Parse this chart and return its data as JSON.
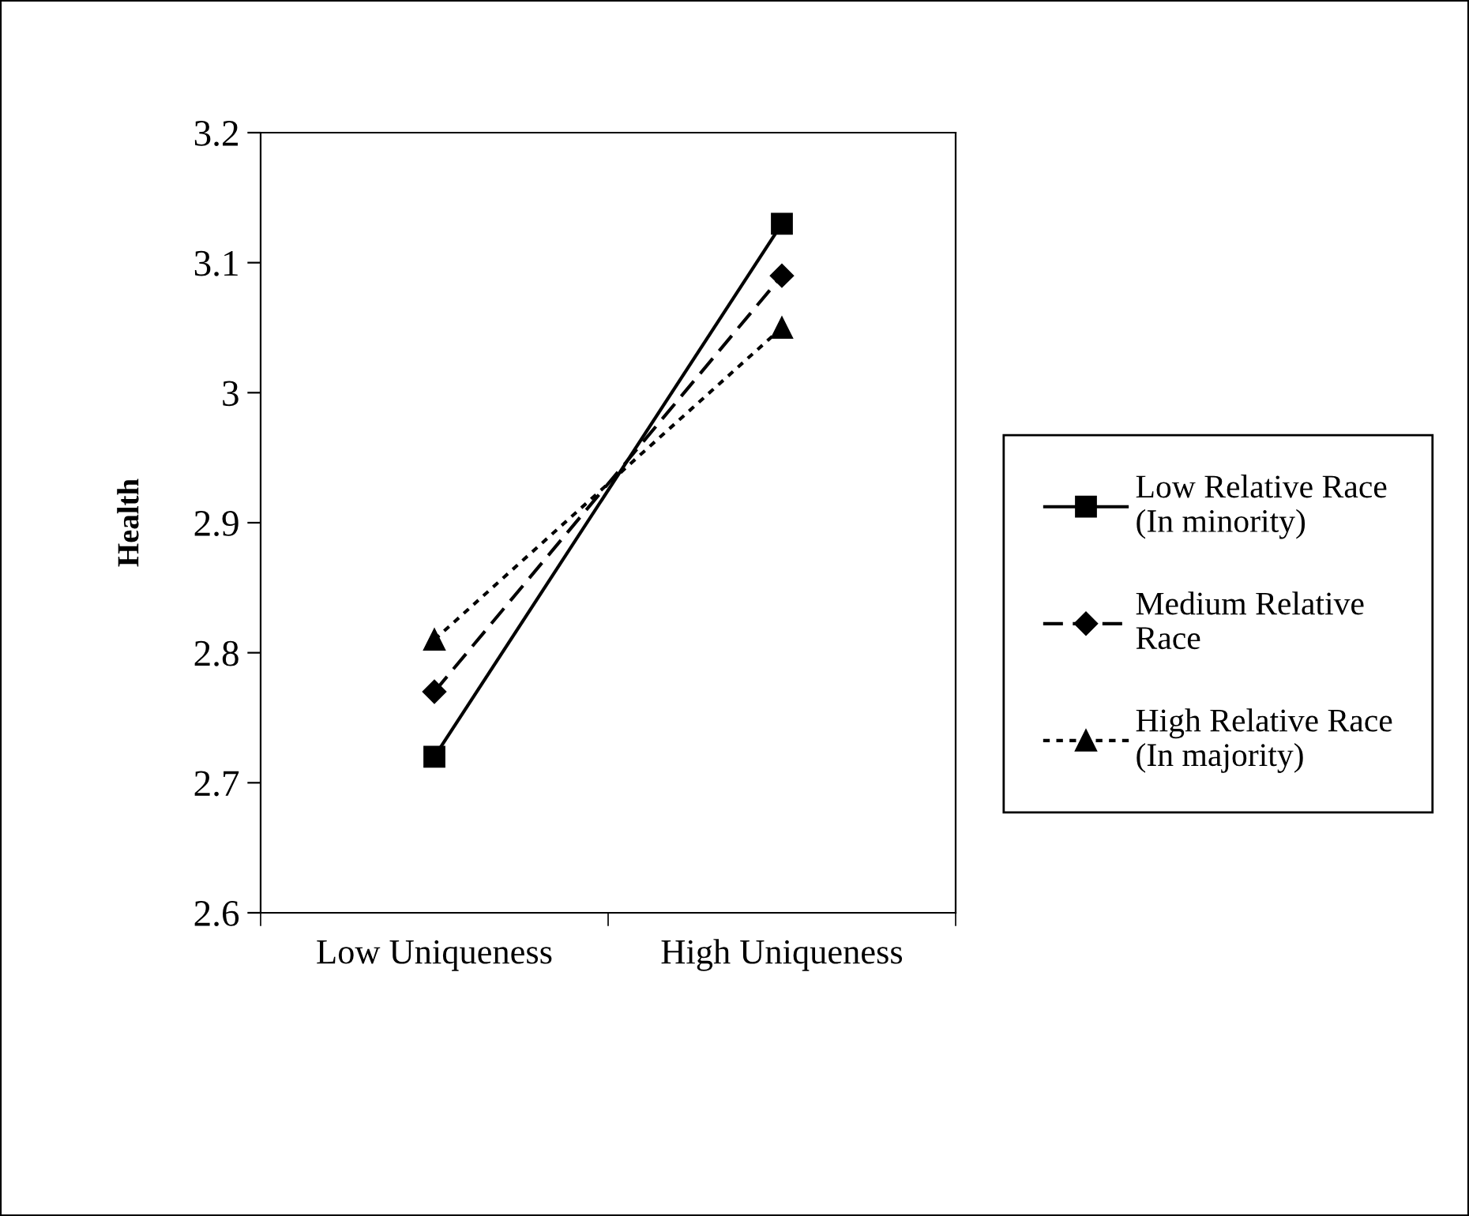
{
  "chart_data": {
    "type": "line",
    "ylabel": "Health",
    "categories": [
      "Low Uniqueness",
      "High Uniqueness"
    ],
    "ylim": [
      2.6,
      3.2
    ],
    "yticks": [
      2.6,
      2.7,
      2.8,
      2.9,
      3,
      3.1,
      3.2
    ],
    "grid": false,
    "legend": "right",
    "series": [
      {
        "name": "Low Relative Race\n(In minority)",
        "color": "#000000",
        "values": [
          2.72,
          3.13
        ],
        "marker": "square",
        "line_style": "solid"
      },
      {
        "name": "Medium Relative\nRace",
        "color": "#000000",
        "values": [
          2.77,
          3.09
        ],
        "marker": "diamond",
        "line_style": "dashed"
      },
      {
        "name": "High Relative Race\n(In majority)",
        "color": "#000000",
        "values": [
          2.81,
          3.05
        ],
        "marker": "triangle",
        "line_style": "dotted"
      }
    ]
  }
}
